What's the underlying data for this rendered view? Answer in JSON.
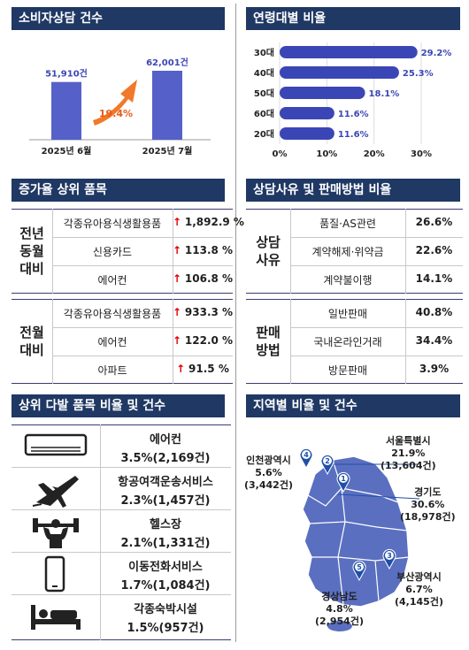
{
  "consult": {
    "header": "소비자상담 건수",
    "pct": "19.4%",
    "chart_data": {
      "type": "bar",
      "categories": [
        "2025년 6월",
        "2025년 7월"
      ],
      "values": [
        51910,
        62001
      ],
      "value_labels": [
        "51,910건",
        "62,001건"
      ],
      "color": "#5561c8"
    }
  },
  "age": {
    "header": "연령대별 비율",
    "chart_data": {
      "type": "bar",
      "orientation": "horizontal",
      "categories": [
        "30대",
        "40대",
        "50대",
        "60대",
        "20대"
      ],
      "values": [
        29.2,
        25.3,
        18.1,
        11.6,
        11.6
      ],
      "value_labels": [
        "29.2%",
        "25.3%",
        "18.1%",
        "11.6%",
        "11.6%"
      ],
      "xticks": [
        "0%",
        "10%",
        "20%",
        "30%"
      ],
      "xlim": [
        0,
        30
      ],
      "color": "#3b46b6"
    }
  },
  "increase": {
    "header": "증가율 상위 품목",
    "groups": [
      {
        "label": "전년\n동월\n대비",
        "rows": [
          {
            "item": "각종유아용식생활용품",
            "arrow": "↑",
            "value": "1,892.9 %"
          },
          {
            "item": "신용카드",
            "arrow": "↑",
            "value": "113.8 %"
          },
          {
            "item": "에어컨",
            "arrow": "↑",
            "value": "106.8 %"
          }
        ]
      },
      {
        "label": "전월\n대비",
        "rows": [
          {
            "item": "각종유아용식생활용품",
            "arrow": "↑",
            "value": "933.3 %"
          },
          {
            "item": "에어컨",
            "arrow": "↑",
            "value": "122.0 %"
          },
          {
            "item": "아파트",
            "arrow": "↑",
            "value": "91.5 %"
          }
        ]
      }
    ]
  },
  "reason": {
    "header": "상담사유 및 판매방법 비율",
    "groups": [
      {
        "label": "상담\n사유",
        "rows": [
          {
            "item": "품질·AS관련",
            "value": "26.6%"
          },
          {
            "item": "계약해제·위약금",
            "value": "22.6%"
          },
          {
            "item": "계약불이행",
            "value": "14.1%"
          }
        ]
      },
      {
        "label": "판매\n방법",
        "rows": [
          {
            "item": "일반판매",
            "value": "40.8%"
          },
          {
            "item": "국내온라인거래",
            "value": "34.4%"
          },
          {
            "item": "방문판매",
            "value": "3.9%"
          }
        ]
      }
    ]
  },
  "top_items": {
    "header": "상위 다발 품목 비율 및 건수",
    "items": [
      {
        "name": "에어컨",
        "stat": "3.5%(2,169건)",
        "icon": "air-conditioner-icon"
      },
      {
        "name": "항공여객운송서비스",
        "stat": "2.3%(1,457건)",
        "icon": "airplane-icon"
      },
      {
        "name": "헬스장",
        "stat": "2.1%(1,331건)",
        "icon": "gym-icon"
      },
      {
        "name": "이동전화서비스",
        "stat": "1.7%(1,084건)",
        "icon": "mobile-phone-icon"
      },
      {
        "name": "각종숙박시설",
        "stat": "1.5%(957건)",
        "icon": "bed-icon"
      }
    ]
  },
  "region": {
    "header": "지역별 비율 및 건수",
    "regions": [
      {
        "rank": "1",
        "name": "경기도",
        "pct": "30.6%",
        "count": "(18,978건)"
      },
      {
        "rank": "2",
        "name": "서울특별시",
        "pct": "21.9%",
        "count": "(13,604건)"
      },
      {
        "rank": "3",
        "name": "부산광역시",
        "pct": "6.7%",
        "count": "(4,145건)"
      },
      {
        "rank": "4",
        "name": "인천광역시",
        "pct": "5.6%",
        "count": "(3,442건)"
      },
      {
        "rank": "5",
        "name": "경상남도",
        "pct": "4.8%",
        "count": "(2,954건)"
      }
    ],
    "map_color": "#5b6fc0",
    "pin_color": "#1f4fa8"
  }
}
